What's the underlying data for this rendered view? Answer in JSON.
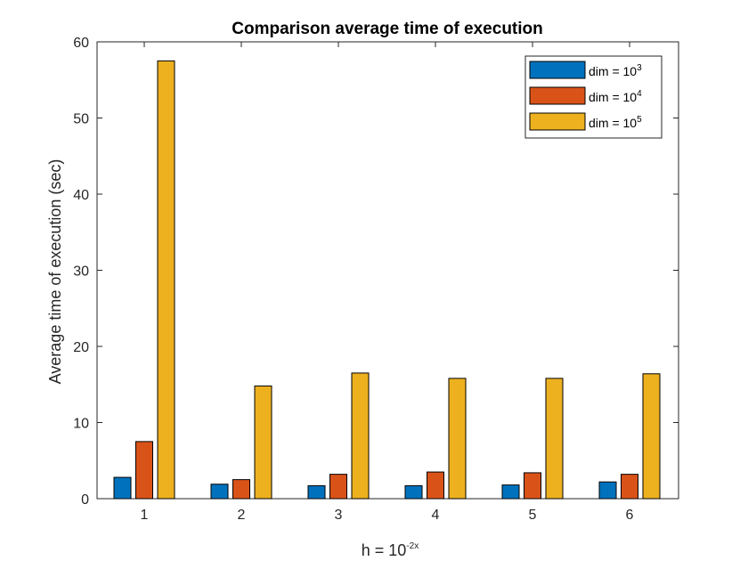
{
  "chart_data": {
    "type": "bar",
    "title": "Comparison average time of execution",
    "xlabel": "h = 10",
    "xlabel_sup": "-2x",
    "ylabel": "Average time of execution (sec)",
    "categories": [
      "1",
      "2",
      "3",
      "4",
      "5",
      "6"
    ],
    "ylim": [
      0,
      60
    ],
    "yticks": [
      0,
      10,
      20,
      30,
      40,
      50,
      60
    ],
    "legend_position": "top-right",
    "grid": false,
    "series": [
      {
        "name": "dim = 10",
        "sup": "3",
        "color": "#0072BD",
        "values": [
          2.8,
          1.9,
          1.7,
          1.7,
          1.8,
          2.2
        ]
      },
      {
        "name": "dim = 10",
        "sup": "4",
        "color": "#D95319",
        "values": [
          7.5,
          2.5,
          3.2,
          3.5,
          3.4,
          3.2
        ]
      },
      {
        "name": "dim = 10",
        "sup": "5",
        "color": "#EDB120",
        "values": [
          57.5,
          14.8,
          16.5,
          15.8,
          15.8,
          16.4
        ]
      }
    ]
  }
}
